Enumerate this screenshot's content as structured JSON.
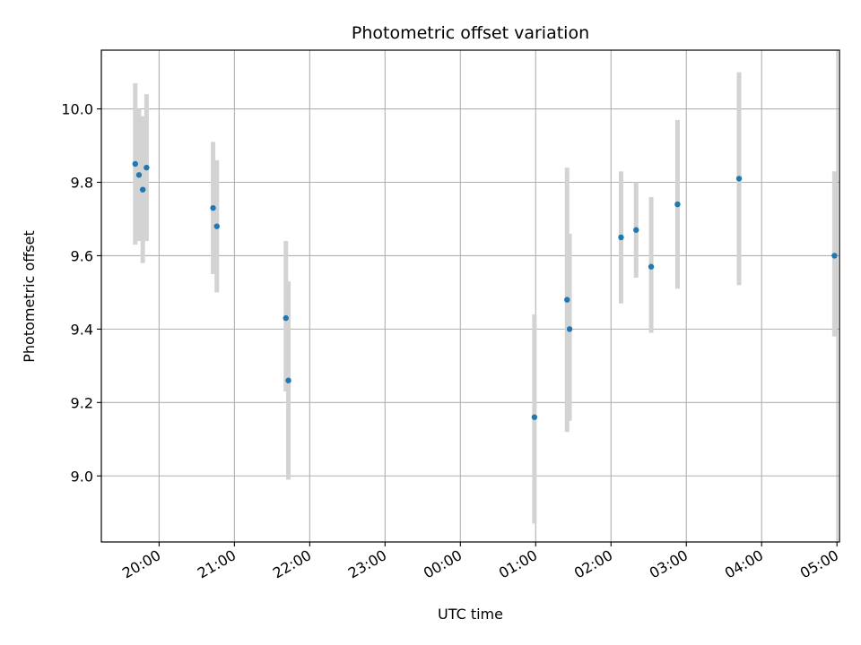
{
  "chart_data": {
    "type": "scatter",
    "title": "Photometric offset variation",
    "xlabel": "UTC time",
    "ylabel": "Photometric offset",
    "x_format": "HH:MM",
    "xlim": [
      "19:14",
      "05:02"
    ],
    "ylim": [
      8.82,
      10.16
    ],
    "grid": true,
    "legend": "none",
    "point_color": "#1f77b4",
    "errorbar_color": "#d3d3d3",
    "x_ticks": [
      "20:00",
      "21:00",
      "22:00",
      "23:00",
      "00:00",
      "01:00",
      "02:00",
      "03:00",
      "04:00",
      "05:00"
    ],
    "y_ticks": [
      "9.0",
      "9.2",
      "9.4",
      "9.6",
      "9.8",
      "10.0"
    ],
    "points": [
      {
        "time": "19:41",
        "y": 9.85,
        "low": 9.63,
        "high": 10.07
      },
      {
        "time": "19:44",
        "y": 9.82,
        "low": 9.64,
        "high": 10.0
      },
      {
        "time": "19:47",
        "y": 9.78,
        "low": 9.58,
        "high": 9.98
      },
      {
        "time": "19:50",
        "y": 9.84,
        "low": 9.64,
        "high": 10.04
      },
      {
        "time": "20:43",
        "y": 9.73,
        "low": 9.55,
        "high": 9.91
      },
      {
        "time": "20:46",
        "y": 9.68,
        "low": 9.5,
        "high": 9.86
      },
      {
        "time": "21:41",
        "y": 9.43,
        "low": 9.23,
        "high": 9.64
      },
      {
        "time": "21:43",
        "y": 9.26,
        "low": 8.99,
        "high": 9.53
      },
      {
        "time": "00:59",
        "y": 9.16,
        "low": 8.87,
        "high": 9.44
      },
      {
        "time": "01:25",
        "y": 9.48,
        "low": 9.12,
        "high": 9.84
      },
      {
        "time": "01:27",
        "y": 9.4,
        "low": 9.15,
        "high": 9.66
      },
      {
        "time": "02:08",
        "y": 9.65,
        "low": 9.47,
        "high": 9.83
      },
      {
        "time": "02:20",
        "y": 9.67,
        "low": 9.54,
        "high": 9.8
      },
      {
        "time": "02:32",
        "y": 9.57,
        "low": 9.39,
        "high": 9.76
      },
      {
        "time": "02:53",
        "y": 9.74,
        "low": 9.51,
        "high": 9.97
      },
      {
        "time": "03:42",
        "y": 9.81,
        "low": 9.52,
        "high": 10.1
      },
      {
        "time": "04:58",
        "y": 9.6,
        "low": 9.38,
        "high": 9.83
      }
    ]
  }
}
